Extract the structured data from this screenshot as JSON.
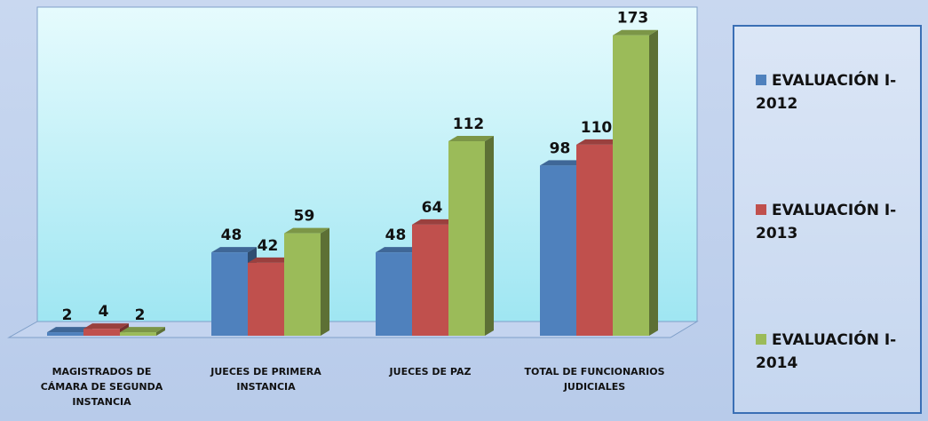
{
  "chart_data": {
    "type": "bar3d",
    "categories": [
      "MAGISTRADOS DE CÁMARA DE SEGUNDA INSTANCIA",
      "JUECES DE PRIMERA INSTANCIA",
      "JUECES DE PAZ",
      "TOTAL DE FUNCIONARIOS JUDICIALES"
    ],
    "series": [
      {
        "name": "EVALUACIÓN I-2012",
        "color": "#4f81bd",
        "values": [
          2,
          48,
          48,
          98
        ]
      },
      {
        "name": "EVALUACIÓN I-2013",
        "color": "#c0504d",
        "values": [
          4,
          42,
          64,
          110
        ]
      },
      {
        "name": "EVALUACIÓN I-2014",
        "color": "#9bbb59",
        "values": [
          2,
          59,
          112,
          173
        ]
      }
    ],
    "ylim": [
      0,
      180
    ],
    "legend": "right"
  }
}
